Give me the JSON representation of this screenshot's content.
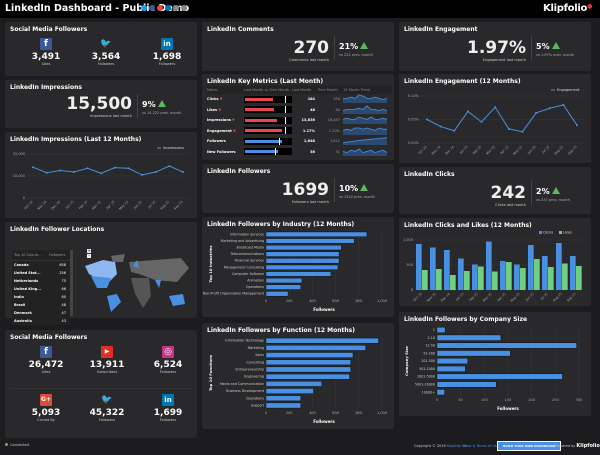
{
  "header": {
    "title": "LinkedIn Dashboard - Public Demo",
    "logo": "Klipfolio",
    "share_icons": [
      "twitter",
      "facebook",
      "google-plus",
      "linkedin",
      "email",
      "link"
    ]
  },
  "colors": {
    "accent": "#4a90e2",
    "positive": "#5cb85c",
    "negative": "#e8484e",
    "likes": "#6fcf7f",
    "panel": "#29292b"
  },
  "months": [
    "Oct 14",
    "Nov 14",
    "Dec 14",
    "Jan 15",
    "Feb 15",
    "Mar 15",
    "Apr 15",
    "May 15",
    "Jun 15",
    "Jul 15",
    "Aug 15",
    "Sep 15"
  ],
  "social_top": {
    "title": "Social Media Followers",
    "items": [
      {
        "icon": "facebook-icon",
        "value": "3,491",
        "label": "Likes"
      },
      {
        "icon": "twitter-icon",
        "value": "3,564",
        "label": "Followers"
      },
      {
        "icon": "linkedin-icon",
        "value": "1,698",
        "label": "Followers"
      }
    ]
  },
  "impressions": {
    "title": "LinkedIn Impressions",
    "value": "15,500",
    "label": "Impressions last month",
    "delta": "9%",
    "compare": "vs 14,222 prev. month"
  },
  "comments": {
    "title": "LinkedIn Comments",
    "value": "270",
    "label": "Comments last month",
    "delta": "21%",
    "compare": "vs 222 prev. month"
  },
  "engagement": {
    "title": "LinkedIn Engagement",
    "value": "1.97%",
    "label": "Engagement last month",
    "delta": "5%",
    "compare": "vs 1.87% prev. month"
  },
  "followers": {
    "title": "LinkedIn Followers",
    "value": "1699",
    "label": "Followers last month",
    "delta": "10%",
    "compare": "vs 1542 prev. month"
  },
  "clicks": {
    "title": "LinkedIn Clicks",
    "value": "242",
    "label": "Clicks last month",
    "delta": "2%",
    "compare": "vs 237 prev. month"
  },
  "key_metrics": {
    "title": "LinkedIn Key Metrics (Last Month)",
    "headers": [
      "Metric",
      "Last Month vs Prev Month",
      "Last Month",
      "Prev Month",
      "12 Month Trend"
    ],
    "rows": [
      {
        "metric": "Clicks",
        "down": true,
        "last": "184",
        "prev": "250",
        "fill": 0.74,
        "trend": [
          3,
          3,
          4,
          3,
          6,
          5,
          3,
          3,
          4,
          3,
          2,
          3
        ]
      },
      {
        "metric": "Likes",
        "down": true,
        "last": "48",
        "prev": "64",
        "fill": 0.75,
        "trend": [
          2,
          3,
          3,
          3,
          4,
          3,
          6,
          3,
          3,
          2,
          3,
          2
        ]
      },
      {
        "metric": "Impressions",
        "down": true,
        "last": "13,836",
        "prev": "16,457",
        "fill": 0.84,
        "trend": [
          3,
          4,
          3,
          3,
          5,
          4,
          3,
          5,
          3,
          3,
          4,
          3
        ]
      },
      {
        "metric": "Engagement",
        "down": true,
        "last": "1.17%",
        "prev": "1.20%",
        "fill": 0.97,
        "trend": [
          3,
          4,
          3,
          5,
          5,
          4,
          5,
          4,
          3,
          5,
          4,
          4
        ]
      },
      {
        "metric": "Followers",
        "down": false,
        "last": "1,648",
        "prev": "1,612",
        "fill": 0.97,
        "trend": [
          1,
          1.5,
          2,
          2.5,
          3,
          3.3,
          3.6,
          4,
          4.3,
          4.6,
          5,
          5.3
        ]
      },
      {
        "metric": "New Followers",
        "down": false,
        "last": "36",
        "prev": "31",
        "fill": 0.86,
        "trend": [
          3,
          2,
          4,
          3,
          5,
          2,
          3,
          4,
          2,
          3,
          4,
          2
        ]
      }
    ]
  },
  "locations": {
    "title": "LinkedIn Follower Locations",
    "headers": [
      "Top 10 Countr...",
      "Followers"
    ],
    "zoom_in": "+",
    "zoom_out": "-",
    "rows": [
      [
        "Canada",
        "658"
      ],
      [
        "United Stat...",
        "256"
      ],
      [
        "Netherlands",
        "75"
      ],
      [
        "United King...",
        "66"
      ],
      [
        "India",
        "60"
      ],
      [
        "Brazil",
        "48"
      ],
      [
        "Denmark",
        "47"
      ],
      [
        "Australia",
        "43"
      ]
    ]
  },
  "social_bottom": {
    "title": "Social Media Followers",
    "items": [
      {
        "icon": "facebook-icon",
        "value": "26,472",
        "label": "Likes"
      },
      {
        "icon": "youtube-icon",
        "value": "13,911",
        "label": "Subscribers"
      },
      {
        "icon": "instagram-icon",
        "value": "6,524",
        "label": "Followers"
      },
      {
        "icon": "google-plus-icon",
        "value": "5,093",
        "label": "Circled By"
      },
      {
        "icon": "twitter-icon",
        "value": "45,322",
        "label": "Followers"
      },
      {
        "icon": "linkedin-icon",
        "value": "1,699",
        "label": "Followers"
      }
    ]
  },
  "footer": {
    "status": "Connected",
    "copyright": "Copyright © 2016",
    "company": "Klipfolio Inc.",
    "terms": "Trust & Terms of Use",
    "cta": "BUILD YOUR OWN DASHBOARD",
    "powered": "Powered by",
    "logo": "Klipfolio"
  },
  "chart_data": [
    {
      "id": "impressions12",
      "type": "line",
      "title": "LinkedIn Impressions (Last 12 Months)",
      "series": [
        {
          "name": "Impressions",
          "values": [
            14000,
            11500,
            12500,
            11800,
            13500,
            11200,
            13800,
            13500,
            10500,
            11800,
            14500,
            11800
          ]
        }
      ],
      "ylim": [
        0,
        20000
      ],
      "yticks": [
        "0",
        "10,000",
        "20,000"
      ],
      "legend": "top-right",
      "grid": true
    },
    {
      "id": "engagement12",
      "type": "line",
      "title": "LinkedIn Engagement (12 Months)",
      "series": [
        {
          "name": "Engagement",
          "values": [
            0.05,
            0.035,
            0.026,
            0.067,
            0.045,
            0.076,
            0.03,
            0.024,
            0.064,
            0.074,
            0.081,
            0.038
          ]
        }
      ],
      "ylim": [
        0,
        0.1
      ],
      "yticks": [
        "0.00%",
        "0.05%",
        "0.10%"
      ],
      "legend": "top-right",
      "grid": true
    },
    {
      "id": "clickslikes",
      "type": "bar",
      "title": "LinkedIn Clicks and Likes (12 Months)",
      "series": [
        {
          "name": "Clicks",
          "values": [
            920,
            850,
            800,
            630,
            510,
            970,
            580,
            510,
            900,
            680,
            940,
            680
          ]
        },
        {
          "name": "Likes",
          "values": [
            400,
            420,
            300,
            380,
            470,
            370,
            560,
            440,
            620,
            460,
            530,
            480
          ]
        }
      ],
      "ylim": [
        0,
        1000
      ],
      "yticks": [
        "0",
        "500",
        "1,000"
      ],
      "legend": "top-right",
      "grid": true
    },
    {
      "id": "industry",
      "type": "hbar",
      "title": "LinkedIn Followers by Industry (12 Months)",
      "ylabel": "Top 10 Industries",
      "xlabel": "Followers",
      "categories": [
        "Information Services",
        "Marketing and Advertising",
        "Broadcast Media",
        "Telecommunications",
        "Financial Services",
        "Management Consulting",
        "Computer Software",
        "Animation",
        "Operations",
        "Non-Profit Organization Management"
      ],
      "values": [
        870,
        760,
        650,
        630,
        630,
        620,
        560,
        310,
        300,
        190
      ],
      "xlim": [
        0,
        1000
      ],
      "xticks": [
        "0",
        "200",
        "400",
        "600",
        "800",
        "1,000"
      ]
    },
    {
      "id": "function",
      "type": "hbar",
      "title": "LinkedIn Followers by Function (12 Months)",
      "ylabel": "Top 10 Functions",
      "xlabel": "Followers",
      "categories": [
        "Information Technology",
        "Marketing",
        "Sales",
        "Consulting",
        "Entrepreneurship",
        "Engineering",
        "Media and Communication",
        "Business Development",
        "Operations",
        "Support"
      ],
      "values": [
        970,
        860,
        750,
        730,
        730,
        720,
        480,
        410,
        300,
        300
      ],
      "xlim": [
        0,
        1000
      ],
      "xticks": [
        "0",
        "200",
        "400",
        "600",
        "800",
        "1,000"
      ]
    },
    {
      "id": "companysize",
      "type": "hbar",
      "title": "LinkedIn Followers by Company Size",
      "ylabel": "Company Size",
      "xlabel": "Followers",
      "categories": [
        "1",
        "2-10",
        "11-50",
        "51-200",
        "201-500",
        "501-1000",
        "1001-5000",
        "5001-10000",
        "10000+"
      ],
      "values": [
        17,
        135,
        295,
        155,
        65,
        60,
        265,
        125,
        16
      ],
      "xlim": [
        0,
        300
      ],
      "xticks": [
        "0",
        "50",
        "100",
        "150",
        "200",
        "250",
        "300"
      ]
    }
  ]
}
